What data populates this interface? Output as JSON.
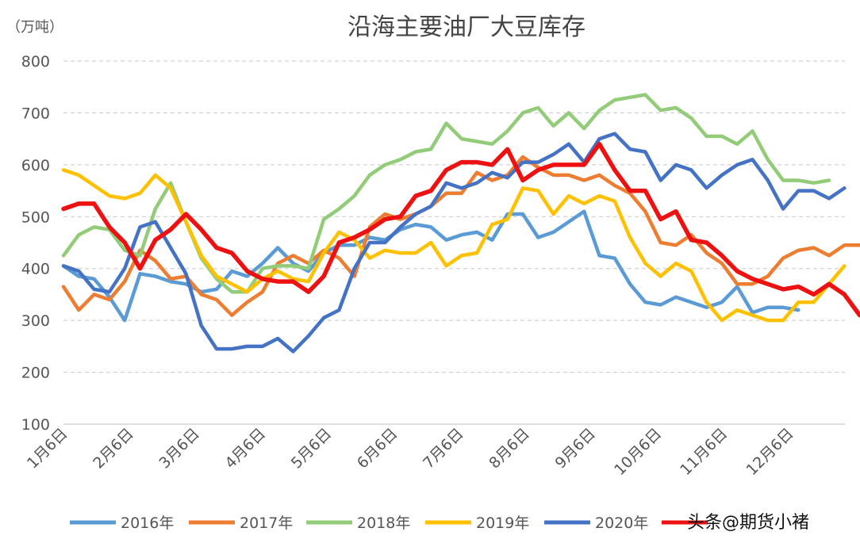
{
  "chart_data": {
    "type": "line",
    "title": "沿海主要油厂大豆库存",
    "ylabel": "（万吨）",
    "xlabel": "",
    "ylim": [
      100,
      800
    ],
    "yticks": [
      800,
      700,
      600,
      500,
      400,
      300,
      200,
      100
    ],
    "x_tick_labels": [
      "1月6日",
      "2月6日",
      "3月6日",
      "4月6日",
      "5月6日",
      "6月6日",
      "7月6日",
      "8月6日",
      "9月6日",
      "10月6日",
      "11月6日",
      "12月6日"
    ],
    "x_unit": "weekly",
    "grid": true,
    "legend": "bottom",
    "series": [
      {
        "name": "2016年",
        "color": "#5B9BD5",
        "values": [
          405,
          385,
          380,
          345,
          300,
          390,
          385,
          375,
          370,
          355,
          360,
          395,
          385,
          410,
          440,
          410,
          395,
          430,
          445,
          445,
          460,
          455,
          475,
          485,
          480,
          455,
          465,
          470,
          455,
          505,
          505,
          460,
          470,
          490,
          510,
          425,
          420,
          370,
          335,
          330,
          345,
          335,
          325,
          335,
          365,
          315,
          325,
          325,
          320
        ]
      },
      {
        "name": "2017年",
        "color": "#ED7D31",
        "values": [
          365,
          320,
          350,
          340,
          375,
          435,
          415,
          380,
          385,
          350,
          340,
          310,
          335,
          355,
          410,
          425,
          410,
          435,
          420,
          385,
          480,
          505,
          495,
          505,
          520,
          545,
          545,
          585,
          570,
          580,
          615,
          595,
          580,
          580,
          570,
          580,
          560,
          545,
          510,
          450,
          445,
          465,
          430,
          410,
          370,
          370,
          385,
          420,
          435,
          440,
          425,
          445,
          445
        ]
      },
      {
        "name": "2018年",
        "color": "#93CC78",
        "values": [
          425,
          465,
          480,
          475,
          435,
          425,
          515,
          565,
          490,
          420,
          380,
          355,
          355,
          400,
          405,
          405,
          400,
          495,
          515,
          540,
          580,
          600,
          610,
          625,
          630,
          680,
          650,
          645,
          640,
          665,
          700,
          710,
          675,
          700,
          670,
          705,
          725,
          730,
          735,
          705,
          710,
          690,
          655,
          655,
          640,
          665,
          610,
          570,
          570,
          565,
          570
        ]
      },
      {
        "name": "2019年",
        "color": "#FFC000",
        "values": [
          590,
          580,
          560,
          540,
          535,
          545,
          580,
          555,
          490,
          425,
          385,
          370,
          355,
          380,
          395,
          380,
          375,
          430,
          470,
          455,
          420,
          435,
          430,
          430,
          450,
          405,
          425,
          430,
          485,
          495,
          555,
          550,
          505,
          540,
          525,
          540,
          530,
          460,
          410,
          385,
          410,
          395,
          335,
          300,
          320,
          310,
          300,
          300,
          335,
          335,
          370,
          405
        ]
      },
      {
        "name": "2020年",
        "color": "#4472C4",
        "values": [
          405,
          395,
          360,
          355,
          400,
          480,
          490,
          440,
          390,
          290,
          245,
          245,
          250,
          250,
          265,
          240,
          270,
          305,
          320,
          400,
          450,
          450,
          480,
          505,
          520,
          565,
          555,
          565,
          585,
          575,
          605,
          605,
          620,
          640,
          605,
          650,
          660,
          630,
          625,
          570,
          600,
          590,
          555,
          580,
          600,
          610,
          570,
          515,
          550,
          550,
          535,
          555
        ]
      },
      {
        "name": "",
        "color": "#EE1111",
        "values": [
          515,
          525,
          525,
          480,
          450,
          400,
          455,
          475,
          505,
          475,
          440,
          430,
          395,
          380,
          375,
          375,
          355,
          385,
          450,
          460,
          475,
          495,
          500,
          540,
          550,
          590,
          605,
          605,
          600,
          630,
          570,
          590,
          600,
          600,
          600,
          640,
          590,
          550,
          550,
          495,
          510,
          455,
          450,
          425,
          395,
          380,
          370,
          360,
          365,
          350,
          370,
          350,
          310
        ]
      }
    ]
  },
  "watermark": "头条@期货小褚"
}
